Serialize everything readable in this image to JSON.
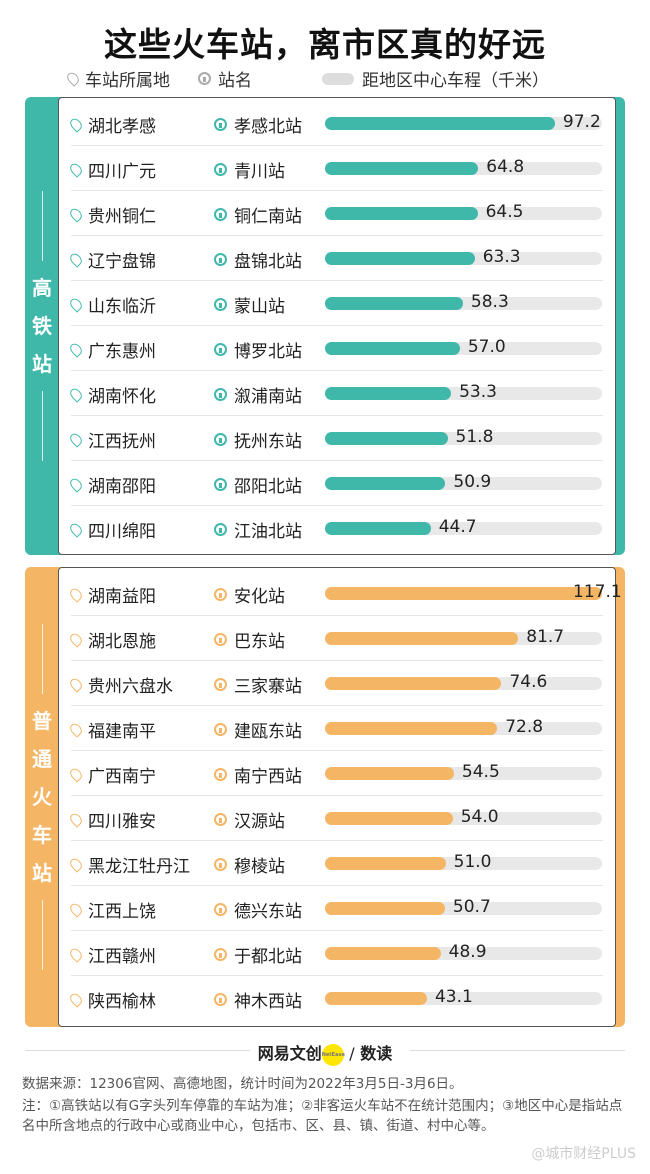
{
  "title": "这些火车站，离市区真的好远",
  "legend": {
    "location": "车站所属地",
    "station": "站名",
    "distance": "距地区中心车程（千米）"
  },
  "colors": {
    "high_speed": "#3fb8aa",
    "regular": "#f4b565",
    "track": "#e8e8e8"
  },
  "chart_data": [
    {
      "type": "bar",
      "orientation": "horizontal",
      "section_label": "高铁站",
      "xlim": [
        0,
        117.1
      ],
      "rows": [
        {
          "location": "湖北孝感",
          "station": "孝感北站",
          "value": 97.2
        },
        {
          "location": "四川广元",
          "station": "青川站",
          "value": 64.8
        },
        {
          "location": "贵州铜仁",
          "station": "铜仁南站",
          "value": 64.5
        },
        {
          "location": "辽宁盘锦",
          "station": "盘锦北站",
          "value": 63.3
        },
        {
          "location": "山东临沂",
          "station": "蒙山站",
          "value": 58.3
        },
        {
          "location": "广东惠州",
          "station": "博罗北站",
          "value": 57.0
        },
        {
          "location": "湖南怀化",
          "station": "溆浦南站",
          "value": 53.3
        },
        {
          "location": "江西抚州",
          "station": "抚州东站",
          "value": 51.8
        },
        {
          "location": "湖南邵阳",
          "station": "邵阳北站",
          "value": 50.9
        },
        {
          "location": "四川绵阳",
          "station": "江油北站",
          "value": 44.7
        }
      ]
    },
    {
      "type": "bar",
      "orientation": "horizontal",
      "section_label": "普通火车站",
      "xlim": [
        0,
        117.1
      ],
      "rows": [
        {
          "location": "湖南益阳",
          "station": "安化站",
          "value": 117.1
        },
        {
          "location": "湖北恩施",
          "station": "巴东站",
          "value": 81.7
        },
        {
          "location": "贵州六盘水",
          "station": "三家寨站",
          "value": 74.6
        },
        {
          "location": "福建南平",
          "station": "建瓯东站",
          "value": 72.8
        },
        {
          "location": "广西南宁",
          "station": "南宁西站",
          "value": 54.5
        },
        {
          "location": "四川雅安",
          "station": "汉源站",
          "value": 54.0
        },
        {
          "location": "黑龙江牡丹江",
          "station": "穆棱站",
          "value": 51.0
        },
        {
          "location": "江西上饶",
          "station": "德兴东站",
          "value": 50.7
        },
        {
          "location": "江西赣州",
          "station": "于都北站",
          "value": 48.9
        },
        {
          "location": "陕西榆林",
          "station": "神木西站",
          "value": 43.1
        }
      ]
    }
  ],
  "footer": {
    "brand_left": "网易文创",
    "brand_dot": "NetEase",
    "brand_sep": "/",
    "brand_right": "数读",
    "source": "数据来源：12306官网、高德地图，统计时间为2022年3月5日-3月6日。",
    "note": "注：①高铁站以有G字头列车停靠的车站为准；②非客运火车站不在统计范围内；③地区中心是指站点名中所含地点的行政中心或商业中心，包括市、区、县、镇、街道、村中心等。",
    "watermark": "@城市财经PLUS"
  }
}
